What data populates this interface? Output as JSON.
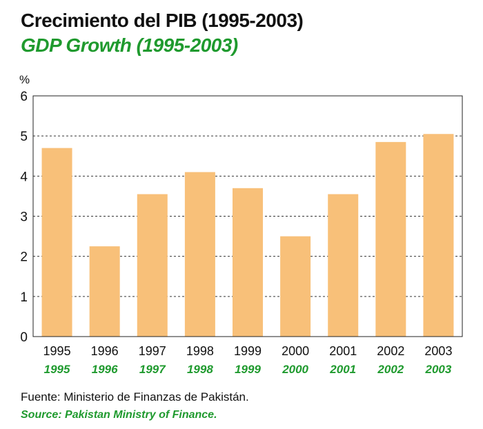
{
  "header": {
    "title_es": "Crecimiento del PIB (1995-2003)",
    "title_en": "GDP Growth (1995-2003)"
  },
  "source": {
    "es": "Fuente: Ministerio de Finanzas de Pakistán.",
    "en": "Source: Pakistan Ministry of Finance."
  },
  "colors": {
    "bar": "#f8c079",
    "accent_green": "#1f9a2e",
    "text": "#111111"
  },
  "chart_data": {
    "type": "bar",
    "title": "Crecimiento del PIB (1995-2003)",
    "subtitle": "GDP Growth (1995-2003)",
    "ylabel": "%",
    "xlabel": "",
    "ylim": [
      0,
      6
    ],
    "yticks": [
      0,
      1,
      2,
      3,
      4,
      5,
      6
    ],
    "grid": true,
    "categories": [
      "1995",
      "1996",
      "1997",
      "1998",
      "1999",
      "2000",
      "2001",
      "2002",
      "2003"
    ],
    "categories_en": [
      "1995",
      "1996",
      "1997",
      "1998",
      "1999",
      "2000",
      "2001",
      "2002",
      "2003"
    ],
    "values": [
      4.7,
      2.25,
      3.55,
      4.1,
      3.7,
      2.5,
      3.55,
      4.85,
      5.05
    ]
  }
}
